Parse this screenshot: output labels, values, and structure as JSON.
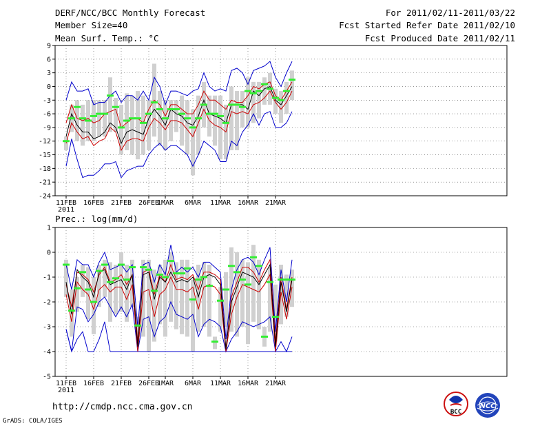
{
  "header": {
    "title": "DERF/NCC/BCC Monthly Forecast",
    "member": "Member Size=40",
    "period": "For 2011/02/11-2011/03/22",
    "refer_date": "Fcst Started Refer Date 2011/02/10",
    "produced_date": "Fcst Produced Date 2011/02/11"
  },
  "footer": {
    "url": "http://cmdp.ncc.cma.gov.cn",
    "credit": "GrADS: COLA/IGES",
    "logo_left_text": "BCC",
    "logo_right_text": "NCC"
  },
  "colors": {
    "max_min": "#0000cc",
    "ctrl": "#000000",
    "quartile": "#cc0000",
    "median_bar": "#33ee33",
    "range_box": "#d0d0d0",
    "grid": "#555555"
  },
  "x_labels": [
    "11FEB",
    "16FEB",
    "21FEB",
    "26FEB",
    "1MAR",
    "6MAR",
    "11MAR",
    "16MAR",
    "21MAR"
  ],
  "x_label_days": [
    0,
    5,
    10,
    15,
    18,
    23,
    28,
    33,
    38
  ],
  "year_label": "2011",
  "chart_data": [
    {
      "type": "line",
      "title": "Mean Surf. Temp.: °C",
      "ylim": [
        -24,
        9
      ],
      "yticks": [
        "9",
        "6",
        "3",
        "0",
        "-3",
        "-6",
        "-9",
        "-12",
        "-15",
        "-18",
        "-21",
        "-24"
      ],
      "ytick_values": [
        9,
        6,
        3,
        0,
        -3,
        -6,
        -9,
        -12,
        -15,
        -18,
        -21,
        -24
      ],
      "days": 40,
      "series": [
        {
          "name": "max",
          "values": [
            -3,
            1,
            -1,
            -1,
            -0.5,
            -4,
            -3.5,
            -3.5,
            -2,
            -1,
            -3.5,
            -2,
            -2,
            -3,
            -1,
            -3,
            2,
            0,
            -4,
            -1,
            -1,
            -1.5,
            -2,
            -1,
            -0.5,
            3,
            0,
            -1,
            -0.5,
            -1,
            3.5,
            4,
            3,
            0.5,
            3.5,
            4,
            4.5,
            5.5,
            2,
            0,
            3,
            5.5
          ]
        },
        {
          "name": "q75",
          "values": [
            -8,
            -4,
            -7,
            -7.5,
            -7,
            -8,
            -7.5,
            -6,
            -5.5,
            -5,
            -9,
            -8,
            -7,
            -7,
            -8,
            -5,
            -3,
            -4,
            -6.5,
            -4,
            -4,
            -5,
            -6,
            -6,
            -4,
            -1,
            -3,
            -3,
            -4,
            -5,
            -3,
            -3.5,
            -3.5,
            -2,
            0,
            -0.5,
            0.5,
            1,
            -2,
            -3,
            -1,
            1
          ]
        },
        {
          "name": "ctrl",
          "values": [
            -11,
            -6,
            -8.5,
            -10,
            -10,
            -11.5,
            -11,
            -10,
            -8,
            -9,
            -12.5,
            -10,
            -9.5,
            -10,
            -10.5,
            -7,
            -5,
            -6.5,
            -8.5,
            -5,
            -6,
            -6.5,
            -8,
            -8.5,
            -6.5,
            -3,
            -6,
            -6.5,
            -7,
            -8,
            -4,
            -4,
            -4,
            -5,
            -1,
            -2,
            -0.5,
            0,
            -3,
            -4,
            -2,
            0
          ]
        },
        {
          "name": "q25",
          "values": [
            -12.5,
            -8,
            -10,
            -11.5,
            -11,
            -13,
            -12,
            -11.5,
            -9,
            -10,
            -14,
            -12,
            -11.5,
            -11.5,
            -12,
            -9,
            -7,
            -8,
            -9.5,
            -7.5,
            -7.5,
            -8,
            -9.5,
            -11,
            -8,
            -5,
            -7.5,
            -8.5,
            -9,
            -10,
            -5.5,
            -6,
            -5.5,
            -6,
            -4,
            -3.5,
            -2.5,
            -1,
            -3.5,
            -5,
            -3.5,
            -1
          ]
        },
        {
          "name": "min",
          "values": [
            -17.5,
            -11.5,
            -16,
            -20,
            -19.5,
            -19.5,
            -18.5,
            -17,
            -17,
            -16.5,
            -20,
            -18.5,
            -18,
            -17.5,
            -17.5,
            -15,
            -13.5,
            -12.5,
            -14,
            -13,
            -13,
            -14,
            -15,
            -17.5,
            -15,
            -12,
            -13,
            -14,
            -16.5,
            -16.5,
            -12,
            -13,
            -10,
            -8.5,
            -6,
            -8.5,
            -6,
            -5.5,
            -9,
            -9,
            -8,
            -5.5
          ]
        },
        {
          "name": "median",
          "values": [
            -12,
            -7,
            -4.5,
            -7,
            -7.5,
            -6.5,
            -6,
            -6,
            -2,
            -4.5,
            -9,
            -7.5,
            -7,
            -7,
            -8,
            -6,
            -3.5,
            -5,
            -7,
            -5,
            -5,
            -6,
            -7,
            -9,
            -7,
            -4,
            -6,
            -6,
            -6.5,
            -8,
            -4,
            -4,
            -4.5,
            -1,
            -1.5,
            -1,
            0.5,
            -0.5,
            -2.5,
            -3,
            -1,
            1.5
          ]
        },
        {
          "name": "box_hi",
          "values": [
            -11,
            -4,
            -3,
            -4,
            -3,
            -3,
            -3,
            -3,
            2,
            -2.5,
            -4,
            -1.5,
            -2,
            -1,
            -2,
            -3,
            5,
            -1,
            -3,
            -3,
            -3,
            -2,
            -3,
            -5,
            -2,
            1,
            -2,
            -2,
            -2,
            -4,
            0,
            -1,
            -1,
            2,
            1,
            1,
            2,
            3,
            -0.5,
            -1,
            1,
            3.5
          ]
        },
        {
          "name": "box_lo",
          "values": [
            -14,
            -10,
            -12,
            -13,
            -12,
            -12,
            -11,
            -11,
            -10,
            -10,
            -15,
            -14,
            -15,
            -16,
            -15,
            -14,
            -11,
            -13,
            -14,
            -12,
            -10,
            -13,
            -15,
            -19.5,
            -15,
            -9,
            -11,
            -13,
            -16,
            -16,
            -14,
            -14,
            -9,
            -9,
            -8,
            -7,
            -4,
            -4,
            -6,
            -8,
            -6,
            -3
          ]
        }
      ]
    },
    {
      "type": "line",
      "title": "Prec.: log(mm/d)",
      "ylim": [
        -5,
        1
      ],
      "yticks": [
        "1",
        "0",
        "-1",
        "-2",
        "-3",
        "-4",
        "-5"
      ],
      "ytick_values": [
        1,
        0,
        -1,
        -2,
        -3,
        -4,
        -5
      ],
      "days": 40,
      "series": [
        {
          "name": "max",
          "values": [
            -0.5,
            -1.5,
            -0.3,
            -0.5,
            -0.5,
            -1,
            -0.4,
            0,
            -0.7,
            -0.6,
            -0.5,
            -0.8,
            -0.5,
            -3,
            -0.5,
            -0.4,
            -1.2,
            -0.5,
            -0.9,
            0.3,
            -0.8,
            -0.6,
            -0.8,
            -0.6,
            -1,
            -0.4,
            -0.4,
            -0.6,
            -0.8,
            -3.5,
            -1.5,
            -0.7,
            -0.3,
            -0.2,
            -0.4,
            -0.9,
            -0.3,
            0.2,
            -3.2,
            -0.7,
            -2,
            -0.3
          ]
        },
        {
          "name": "q75",
          "values": [
            -1.3,
            -2.2,
            -0.8,
            -0.9,
            -1.1,
            -1.6,
            -0.9,
            -0.6,
            -1.2,
            -1.1,
            -0.9,
            -1.3,
            -0.9,
            -3.6,
            -0.8,
            -0.7,
            -1.7,
            -0.9,
            -1.2,
            -0.5,
            -1.1,
            -1,
            -1.1,
            -0.9,
            -1.5,
            -0.8,
            -0.8,
            -0.9,
            -1.1,
            -3.9,
            -1.8,
            -1.2,
            -0.6,
            -0.6,
            -0.8,
            -1.2,
            -0.7,
            -0.3,
            -3.6,
            -1,
            -2.3,
            -1
          ]
        },
        {
          "name": "ctrl",
          "values": [
            -1.2,
            -2.5,
            -0.7,
            -1,
            -1.2,
            -1.8,
            -0.8,
            -0.7,
            -1.3,
            -1.2,
            -1.1,
            -1.5,
            -0.9,
            -3.8,
            -0.9,
            -0.8,
            -1.9,
            -1,
            -1.2,
            -0.8,
            -1.2,
            -1.1,
            -1.2,
            -1,
            -1.8,
            -1,
            -0.9,
            -1,
            -1.3,
            -3.9,
            -2,
            -1.4,
            -0.8,
            -0.9,
            -1,
            -1.3,
            -0.9,
            -0.5,
            -3.8,
            -1.2,
            -2.4,
            -1.1
          ]
        },
        {
          "name": "q25",
          "values": [
            -1.7,
            -2.8,
            -1.2,
            -1.5,
            -1.7,
            -2.3,
            -1.5,
            -1.3,
            -1.6,
            -1.4,
            -1.4,
            -1.9,
            -1.3,
            -4,
            -1.6,
            -1.5,
            -2.6,
            -1.7,
            -1.5,
            -1,
            -1.5,
            -1.5,
            -1.6,
            -1.4,
            -2.3,
            -1.4,
            -1.3,
            -1.4,
            -1.7,
            -4,
            -2.5,
            -1.8,
            -1.3,
            -1.4,
            -1.5,
            -1.6,
            -1.3,
            -0.9,
            -4,
            -1.6,
            -2.7,
            -1.4
          ]
        },
        {
          "name": "min",
          "values": [
            -3.1,
            -4,
            -2.2,
            -2.3,
            -2.8,
            -2.5,
            -2,
            -1.8,
            -2.2,
            -2.6,
            -2.2,
            -2.6,
            -2.1,
            -4,
            -2.7,
            -2.6,
            -3.4,
            -2.8,
            -2.6,
            -2,
            -2.5,
            -2.6,
            -2.7,
            -2.5,
            -3.4,
            -2.9,
            -2.7,
            -2.8,
            -3,
            -4,
            -3.5,
            -3.2,
            -2.8,
            -2.9,
            -3,
            -2.9,
            -2.8,
            -2.6,
            -4,
            -3.6,
            -4,
            -3.4
          ]
        },
        {
          "name": "min_lower",
          "values": [
            -3.1,
            -4,
            -3.5,
            -3.2,
            -4,
            -4,
            -3.5,
            -2.8,
            -4,
            -4,
            -4,
            -4,
            -4,
            -4,
            -4,
            -4,
            -4,
            -4,
            -4,
            -4,
            -4,
            -4,
            -4,
            -4,
            -4,
            -4,
            -4,
            -4,
            -4,
            -4,
            -4,
            -4,
            -4,
            -4,
            -4,
            -4,
            -4,
            -4,
            -4,
            -4,
            -4,
            -4
          ]
        },
        {
          "name": "median",
          "values": [
            -0.5,
            -2.35,
            -1.45,
            -0.8,
            -1.5,
            -2,
            -0.75,
            -0.5,
            -1.2,
            -1.05,
            -0.5,
            -1.1,
            -0.6,
            -2.95,
            -0.6,
            -0.7,
            -1.55,
            -0.9,
            -1,
            -0.35,
            -0.85,
            -0.85,
            -0.65,
            -1.9,
            -1.1,
            -1,
            -1.35,
            -3.6,
            -1.95,
            -1.5,
            -0.55,
            -0.8,
            -1.1,
            -1.3,
            -0.2,
            -0.55,
            -3.4,
            -1.2,
            -2.6,
            -1.1,
            -1.1,
            -1.1
          ]
        },
        {
          "name": "box_hi",
          "values": [
            -0.3,
            -1.5,
            -1,
            -0.5,
            -0.6,
            -1,
            -0.5,
            -0.3,
            -0.4,
            -0.5,
            0,
            -0.5,
            -0.3,
            -2.6,
            -0.3,
            -0.3,
            -0.7,
            -0.5,
            -0.3,
            0,
            -0.4,
            -0.3,
            -0.3,
            -1.1,
            -0.5,
            -0.4,
            -0.5,
            -3.4,
            -1.4,
            -0.8,
            0.2,
            0,
            -0.3,
            -0.4,
            0.3,
            -0.3,
            -3,
            -0.6,
            -1.3,
            -0.5,
            -0.9,
            -0.7
          ]
        },
        {
          "name": "box_lo",
          "values": [
            -1.8,
            -3.4,
            -2.4,
            -1.8,
            -2.7,
            -3.3,
            -2.2,
            -1.8,
            -2.8,
            -2.5,
            -2.4,
            -2.8,
            -2.2,
            -3.4,
            -3.4,
            -4,
            -3.6,
            -2.9,
            -3.4,
            -2.8,
            -3.1,
            -3.3,
            -3.4,
            -4,
            -3.2,
            -3,
            -3.4,
            -3.9,
            -3.2,
            -3,
            -3.2,
            -3.4,
            -3,
            -3.7,
            -2.8,
            -3.1,
            -3.8,
            -3.2,
            -3.6,
            -2.9,
            -2.6,
            -2.2
          ]
        }
      ]
    }
  ]
}
